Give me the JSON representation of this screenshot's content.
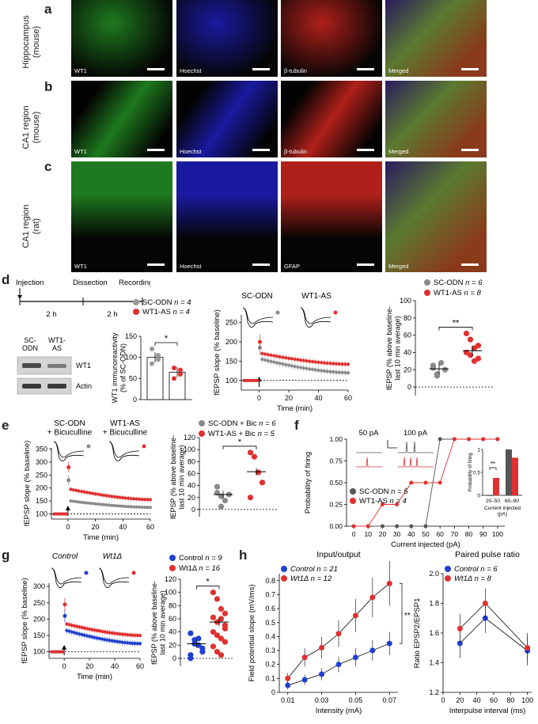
{
  "panel_letters": {
    "a": "a",
    "b": "b",
    "c": "c",
    "d": "d",
    "e": "e",
    "f": "f",
    "g": "g",
    "h": "h"
  },
  "micro": {
    "rows": [
      {
        "label1": "Hippocampus",
        "label2": "(mouse)"
      },
      {
        "label1": "CA1 region",
        "label2": "(mouse)"
      },
      {
        "label1": "CA1 region",
        "label2": "(rat)"
      }
    ],
    "captions": [
      [
        "WT1",
        "Hoechst",
        "β-tubulin",
        "Merged"
      ],
      [
        "WT1",
        "Hoechst",
        "β-tubulin",
        "Merged"
      ],
      [
        "WT1",
        "Hoechst",
        "GFAP",
        "Merged"
      ]
    ],
    "colors": {
      "green": "#1e7a1e",
      "blue": "#1a1aa0",
      "red": "#b0201a",
      "merged": "#6a4a2a"
    }
  },
  "d": {
    "timeline": {
      "labels": [
        "Injection",
        "Dissection",
        "Recordings"
      ],
      "intervals": [
        "2 h",
        "2 h"
      ]
    },
    "blot": {
      "col_labels": [
        "SC-\nODN",
        "WT1-\nAS"
      ],
      "bands": [
        "WT1",
        "Actin"
      ]
    },
    "immuno_chart": {
      "ylabel": "WT1 immunoreactivity\n(% of SC-ODN)",
      "legend": [
        {
          "name": "SC-ODN",
          "n": "n = 4"
        },
        {
          "name": "WT1-AS",
          "n": "n = 4"
        }
      ],
      "yticks": [
        0,
        50,
        100,
        150
      ],
      "means": [
        100,
        65
      ],
      "points": [
        [
          120,
          95,
          85,
          105
        ],
        [
          75,
          60,
          50,
          70
        ]
      ],
      "sig": "*"
    },
    "fepsp_chart": {
      "ylabel": "fEPSP slope (% baseline)",
      "xlabel": "Time (min)",
      "xticks": [
        0,
        20,
        40,
        60
      ],
      "yticks": [
        100,
        150,
        200,
        250
      ],
      "trace_labels": [
        "SC-ODN",
        "WT1-AS"
      ],
      "series": [
        {
          "name": "SC-ODN",
          "color": "#8a8a8a",
          "baseline": 100,
          "peak": 185,
          "start": 155,
          "end": 120
        },
        {
          "name": "WT1-AS",
          "color": "#e03030",
          "baseline": 100,
          "peak": 200,
          "start": 170,
          "end": 142
        }
      ]
    },
    "summary_chart": {
      "ylabel": "fEPSP (% above baseline-\nlast 10 min average)",
      "legend": [
        {
          "name": "SC-ODN",
          "n": "n = 6"
        },
        {
          "name": "WT1-AS",
          "n": "n = 8"
        }
      ],
      "yticks": [
        0,
        20,
        40,
        60,
        80,
        100
      ],
      "points": [
        [
          22,
          15,
          28,
          20,
          25,
          13
        ],
        [
          40,
          55,
          30,
          48,
          62,
          37,
          45,
          33
        ]
      ],
      "means": [
        21,
        42
      ],
      "sig": "**"
    }
  },
  "e": {
    "fepsp_chart": {
      "ylabel": "fEPSP slope (% baseline)",
      "xlabel": "Time (min)",
      "xticks": [
        0,
        20,
        40,
        60
      ],
      "yticks": [
        100,
        150,
        200,
        250,
        300,
        350
      ],
      "trace_labels": [
        "SC-ODN\n+ Bicuculline",
        "WT1-AS\n+ Bicuculline"
      ],
      "series": [
        {
          "name": "SC-ODN + Bic",
          "color": "#8a8a8a",
          "baseline": 100,
          "peak": 230,
          "start": 150,
          "end": 125
        },
        {
          "name": "WT1-AS + Bic",
          "color": "#e03030",
          "baseline": 100,
          "peak": 280,
          "start": 195,
          "end": 155
        }
      ]
    },
    "summary_chart": {
      "ylabel": "fEPSP (% above baseline-\nlast 10 min average)",
      "legend": [
        {
          "name": "SC-ODN + Bic",
          "n": "n = 6"
        },
        {
          "name": "WT1-AS + Bic",
          "n": "n = 5"
        }
      ],
      "yticks": [
        0,
        20,
        40,
        60,
        80,
        100,
        120
      ],
      "points": [
        [
          38,
          22,
          15,
          25,
          28,
          5
        ],
        [
          95,
          88,
          62,
          45,
          20
        ]
      ],
      "means": [
        25,
        63
      ],
      "sig": "*"
    }
  },
  "f": {
    "chart": {
      "ylabel": "Probability of firing",
      "xlabel": "Current injected (pA)",
      "xticks": [
        0,
        10,
        20,
        30,
        40,
        50,
        60,
        70,
        80,
        90,
        100
      ],
      "yticks": [
        "0.00",
        "0.25",
        "0.50",
        "0.75",
        "1.00"
      ],
      "trace_labels": [
        "50 pA",
        "100 pA"
      ],
      "legend": [
        {
          "name": "SC-ODN",
          "n": "n = 5"
        },
        {
          "name": "WT1-AS",
          "n": "n = 4"
        }
      ],
      "series": [
        {
          "name": "SC-ODN",
          "color": "#555555",
          "x": [
            0,
            10,
            20,
            30,
            40,
            50,
            60,
            70,
            80,
            90,
            100
          ],
          "y": [
            0,
            0,
            0,
            0,
            0,
            0,
            1,
            1,
            1,
            1,
            1
          ]
        },
        {
          "name": "WT1-AS",
          "color": "#e03030",
          "x": [
            0,
            10,
            20,
            30,
            40,
            50,
            60,
            70,
            80,
            90,
            100
          ],
          "y": [
            0,
            0,
            0.25,
            0.25,
            0.5,
            0.5,
            0.5,
            1,
            1,
            1,
            1
          ]
        }
      ]
    },
    "inset": {
      "ylabel": "Probability of firing",
      "xlabel": "Current injected\n(pA)",
      "categories": [
        "20–50",
        "60–90"
      ],
      "yticks": [
        0,
        0.5,
        1
      ],
      "values": [
        [
          0,
          0.38
        ],
        [
          1,
          0.82
        ]
      ],
      "sig": "**"
    }
  },
  "g": {
    "fepsp_chart": {
      "ylabel": "fEPSP slope (% baseline)",
      "xlabel": "Time (min)",
      "xticks": [
        0,
        20,
        40,
        60
      ],
      "yticks": [
        100,
        150,
        200,
        250,
        300
      ],
      "trace_labels": [
        "Control",
        "Wt1Δ"
      ],
      "series": [
        {
          "name": "Control",
          "color": "#2040d0",
          "baseline": 100,
          "peak": 210,
          "start": 165,
          "end": 125
        },
        {
          "name": "Wt1Δ",
          "color": "#e03030",
          "baseline": 100,
          "peak": 245,
          "start": 185,
          "end": 150
        }
      ]
    },
    "summary_chart": {
      "ylabel": "fEPSP (% above baseline-\nlast 10 min average)",
      "legend": [
        {
          "name": "Control",
          "n": "n = 9"
        },
        {
          "name": "Wt1Δ",
          "n": "n = 16"
        }
      ],
      "yticks": [
        0,
        20,
        40,
        60,
        80,
        100,
        120
      ],
      "points": [
        [
          38,
          28,
          20,
          10,
          5,
          22,
          30,
          15,
          0
        ],
        [
          100,
          90,
          75,
          68,
          62,
          55,
          60,
          45,
          40,
          35,
          30,
          25,
          18,
          10,
          5,
          50
        ]
      ],
      "means": [
        22,
        55
      ],
      "sig": "*"
    }
  },
  "h": {
    "io_chart": {
      "title": "Input/output",
      "ylabel": "Field potential slope (mV/ms)",
      "xlabel": "Intensity (mA)",
      "xticks": [
        "0.01",
        "0.03",
        "0.05",
        "0.07"
      ],
      "yticks": [
        "0",
        "0.1",
        "0.2",
        "0.3",
        "0.4",
        "0.5",
        "0.6",
        "0.7",
        "0.8"
      ],
      "legend": [
        {
          "name": "Control",
          "n": "n = 21"
        },
        {
          "name": "Wt1Δ",
          "n": "n = 12"
        }
      ],
      "series": [
        {
          "name": "Control",
          "color": "#2040d0",
          "x": [
            0.01,
            0.02,
            0.03,
            0.04,
            0.05,
            0.06,
            0.07
          ],
          "y": [
            0.05,
            0.09,
            0.13,
            0.2,
            0.25,
            0.3,
            0.35
          ]
        },
        {
          "name": "Wt1Δ",
          "color": "#e03030",
          "x": [
            0.01,
            0.02,
            0.03,
            0.04,
            0.05,
            0.06,
            0.07
          ],
          "y": [
            0.1,
            0.25,
            0.32,
            0.42,
            0.55,
            0.68,
            0.78
          ]
        }
      ],
      "sig": "**"
    },
    "ppr_chart": {
      "title": "Paired pulse ratio",
      "ylabel": "Ratio EPSP2/EPSP1",
      "xlabel": "Interpulse interval (ms)",
      "xticks": [
        0,
        20,
        40,
        60,
        80,
        100
      ],
      "yticks": [
        "1.2",
        "1.4",
        "1.6",
        "1.8",
        "2.0"
      ],
      "legend": [
        {
          "name": "Control",
          "n": "n = 6"
        },
        {
          "name": "Wt1Δ",
          "n": "n = 8"
        }
      ],
      "series": [
        {
          "name": "Control",
          "color": "#2040d0",
          "x": [
            20,
            50,
            100
          ],
          "y": [
            1.53,
            1.7,
            1.48
          ]
        },
        {
          "name": "Wt1Δ",
          "color": "#e03030",
          "x": [
            20,
            50,
            100
          ],
          "y": [
            1.63,
            1.8,
            1.5
          ]
        }
      ]
    }
  }
}
